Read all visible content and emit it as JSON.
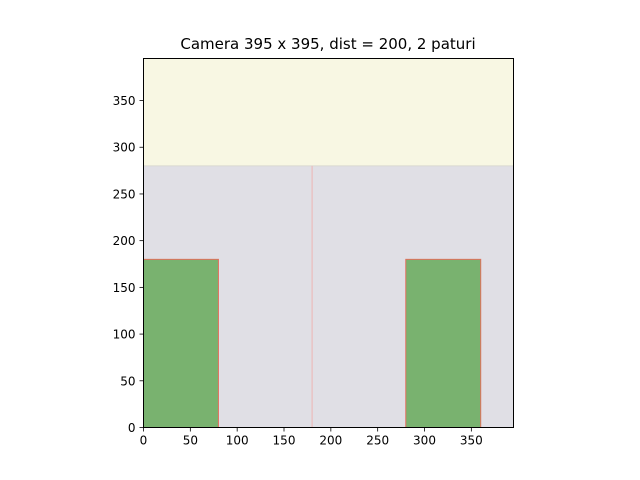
{
  "chart_data": {
    "type": "floor-plan",
    "title": "Camera 395 x 395, dist = 200, 2 paturi",
    "xlim": [
      0,
      395
    ],
    "ylim": [
      0,
      395
    ],
    "xticks": [
      0,
      50,
      100,
      150,
      200,
      250,
      300,
      350
    ],
    "yticks": [
      0,
      50,
      100,
      150,
      200,
      250,
      300,
      350
    ],
    "grid": false,
    "regions": [
      {
        "name": "top-zone",
        "x": [
          0,
          395
        ],
        "y": [
          280,
          395
        ],
        "color": "#f8f7e3"
      },
      {
        "name": "floor-zone",
        "x": [
          0,
          395
        ],
        "y": [
          0,
          280
        ],
        "color": "#e0dfe5"
      }
    ],
    "divider": {
      "x": 180,
      "y": [
        0,
        280
      ],
      "color": "#ebbcbc"
    },
    "beds": [
      {
        "name": "bed-1",
        "x": [
          0,
          80
        ],
        "y": [
          0,
          180
        ],
        "fill": "#79b26f",
        "edge": "#e06f5c"
      },
      {
        "name": "bed-2",
        "x": [
          280,
          360
        ],
        "y": [
          0,
          180
        ],
        "fill": "#79b26f",
        "edge": "#e06f5c"
      }
    ]
  }
}
